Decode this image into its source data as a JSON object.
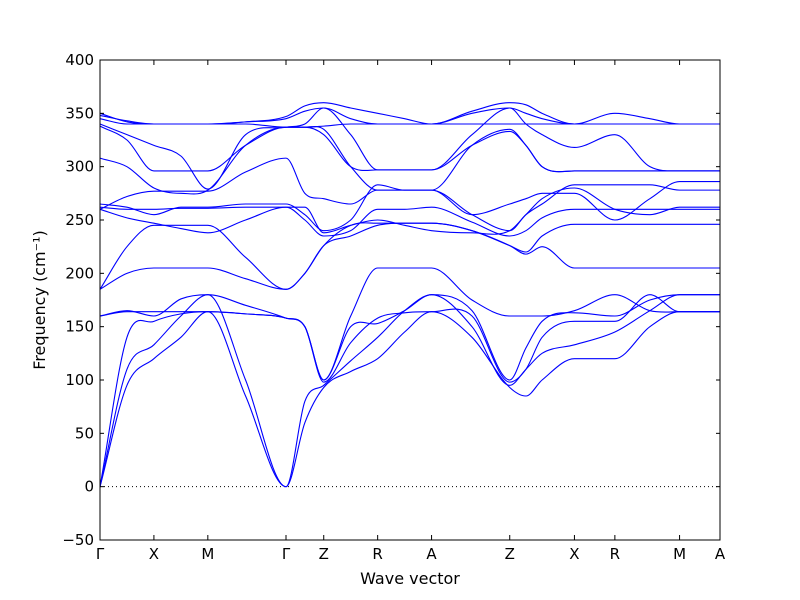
{
  "chart_data": {
    "type": "line",
    "title": "",
    "xlabel": "Wave vector",
    "ylabel": "Frequency (cm⁻¹)",
    "ylim": [
      -50,
      400
    ],
    "yticks": [
      -50,
      0,
      50,
      100,
      150,
      200,
      250,
      300,
      350,
      400
    ],
    "xlim": [
      0,
      11.5
    ],
    "xticks": [
      {
        "label": "Γ",
        "x": 0
      },
      {
        "label": "X",
        "x": 1
      },
      {
        "label": "M",
        "x": 2
      },
      {
        "label": "Γ",
        "x": 3.45
      },
      {
        "label": "Z",
        "x": 4.15
      },
      {
        "label": "R",
        "x": 5.15
      },
      {
        "label": "A",
        "x": 6.15
      },
      {
        "label": "Z",
        "x": 7.6
      },
      {
        "label": "X",
        "x": 8.8
      },
      {
        "label": "R",
        "x": 9.55
      },
      {
        "label": "M",
        "x": 10.75
      },
      {
        "label": "A",
        "x": 11.5
      }
    ],
    "zero_line": {
      "y": 0,
      "style": "dotted"
    },
    "line_color": "#0000ff",
    "series": [
      {
        "x": [
          0,
          0.5,
          1,
          1.5,
          2,
          2.7,
          3.45,
          3.8,
          4.15,
          4.65,
          5.15,
          5.65,
          6.15,
          6.9,
          7.6,
          7.9,
          8.2,
          8.8,
          9.55,
          10.2,
          10.75,
          11.5
        ],
        "y": [
          0,
          95,
          120,
          140,
          164,
          85,
          0,
          60,
          93,
          108,
          120,
          145,
          164,
          140,
          93,
          85,
          100,
          120,
          120,
          150,
          164,
          164
        ]
      },
      {
        "x": [
          0,
          0.5,
          1,
          1.5,
          2,
          2.7,
          3.45,
          3.8,
          4.15,
          4.65,
          5.15,
          5.65,
          6.15,
          6.9,
          7.6,
          7.9,
          8.2,
          8.8,
          9.55,
          10.2,
          10.75,
          11.5
        ],
        "y": [
          0,
          110,
          133,
          160,
          180,
          100,
          0,
          80,
          95,
          118,
          140,
          165,
          180,
          150,
          95,
          110,
          125,
          133,
          145,
          165,
          180,
          180
        ]
      },
      {
        "x": [
          0,
          0.5,
          1,
          1.5,
          2,
          2.7,
          3.45,
          3.8,
          4.15,
          4.65,
          5.15,
          5.65,
          6.15,
          6.9,
          7.6,
          7.9,
          8.2,
          8.8,
          9.55,
          10.2,
          10.75,
          11.5
        ],
        "y": [
          0,
          140,
          155,
          162,
          164,
          162,
          158,
          150,
          98,
          135,
          158,
          163,
          164,
          160,
          98,
          110,
          140,
          155,
          155,
          180,
          164,
          164
        ]
      },
      {
        "x": [
          0,
          0.5,
          1,
          1.5,
          2,
          2.7,
          3.45,
          3.8,
          4.15,
          4.65,
          5.15,
          5.65,
          6.15,
          6.9,
          7.6,
          7.9,
          8.2,
          8.8,
          9.55,
          10.2,
          10.75,
          11.5
        ],
        "y": [
          160,
          164,
          164,
          164,
          164,
          162,
          158,
          150,
          100,
          150,
          153,
          165,
          180,
          165,
          100,
          130,
          155,
          163,
          160,
          175,
          180,
          180
        ]
      },
      {
        "x": [
          0,
          0.5,
          1,
          1.5,
          2,
          2.7,
          3.45,
          3.8,
          4.15,
          4.65,
          5.15,
          5.65,
          6.15,
          6.9,
          7.6,
          7.9,
          8.2,
          8.8,
          9.55,
          10.2,
          10.75,
          11.5
        ],
        "y": [
          160,
          165,
          160,
          176,
          180,
          170,
          158,
          150,
          100,
          160,
          205,
          205,
          205,
          175,
          160,
          160,
          160,
          165,
          180,
          165,
          164,
          164
        ]
      },
      {
        "x": [
          0,
          0.5,
          1,
          1.5,
          2,
          2.7,
          3.45,
          3.8,
          4.15,
          4.65,
          5.15,
          5.65,
          6.15,
          6.9,
          7.6,
          7.9,
          8.2,
          8.8,
          9.55,
          10.2,
          10.75,
          11.5
        ],
        "y": [
          185,
          200,
          205,
          205,
          205,
          195,
          185,
          200,
          226,
          235,
          245,
          247,
          247,
          240,
          226,
          218,
          225,
          205,
          205,
          205,
          205,
          205
        ]
      },
      {
        "x": [
          0,
          0.5,
          1,
          1.5,
          2,
          2.7,
          3.45,
          3.8,
          4.15,
          4.65,
          5.15,
          5.65,
          6.15,
          6.9,
          7.6,
          7.9,
          8.2,
          8.8,
          9.55,
          10.2,
          10.75,
          11.5
        ],
        "y": [
          185,
          225,
          245,
          245,
          245,
          215,
          185,
          200,
          226,
          245,
          247,
          247,
          247,
          240,
          226,
          220,
          235,
          246,
          246,
          246,
          246,
          246
        ]
      },
      {
        "x": [
          0,
          0.5,
          1,
          1.5,
          2,
          2.7,
          3.45,
          3.8,
          4.15,
          4.65,
          5.15,
          5.65,
          6.15,
          6.9,
          7.6,
          7.9,
          8.2,
          8.8,
          9.55,
          10.2,
          10.75,
          11.5
        ],
        "y": [
          260,
          252,
          247,
          242,
          238,
          250,
          262,
          250,
          235,
          240,
          260,
          260,
          262,
          248,
          235,
          240,
          252,
          260,
          260,
          260,
          260,
          260
        ]
      },
      {
        "x": [
          0,
          0.5,
          1,
          1.5,
          2,
          2.7,
          3.45,
          3.8,
          4.15,
          4.65,
          5.15,
          5.65,
          6.15,
          6.9,
          7.6,
          7.9,
          8.2,
          8.8,
          9.55,
          10.2,
          10.75,
          11.5
        ],
        "y": [
          262,
          260,
          260,
          261,
          261,
          262,
          262,
          262,
          238,
          245,
          250,
          245,
          240,
          238,
          240,
          255,
          270,
          280,
          260,
          255,
          262,
          262
        ]
      },
      {
        "x": [
          0,
          0.5,
          1,
          1.5,
          2,
          2.7,
          3.45,
          3.8,
          4.15,
          4.65,
          5.15,
          5.65,
          6.15,
          6.9,
          7.6,
          7.9,
          8.2,
          8.8,
          9.55,
          10.2,
          10.75,
          11.5
        ],
        "y": [
          265,
          262,
          255,
          262,
          262,
          265,
          265,
          255,
          240,
          250,
          283,
          278,
          278,
          255,
          240,
          255,
          265,
          283,
          283,
          283,
          278,
          278
        ]
      },
      {
        "x": [
          0,
          0.5,
          1,
          1.5,
          2,
          2.7,
          3.45,
          3.8,
          4.15,
          4.65,
          5.15,
          5.65,
          6.15,
          6.9,
          7.6,
          7.9,
          8.2,
          8.8,
          9.55,
          10.2,
          10.75,
          11.5
        ],
        "y": [
          260,
          272,
          277,
          277,
          277,
          295,
          308,
          275,
          270,
          265,
          278,
          278,
          278,
          255,
          265,
          270,
          275,
          275,
          250,
          270,
          286,
          286
        ]
      },
      {
        "x": [
          0,
          0.5,
          1,
          1.5,
          2,
          2.7,
          3.45,
          3.8,
          4.15,
          4.65,
          5.15,
          5.65,
          6.15,
          6.9,
          7.6,
          7.9,
          8.2,
          8.8,
          9.55,
          10.2,
          10.75,
          11.5
        ],
        "y": [
          308,
          300,
          280,
          275,
          278,
          320,
          337,
          337,
          330,
          300,
          297,
          297,
          297,
          320,
          333,
          320,
          300,
          296,
          296,
          296,
          296,
          296
        ]
      },
      {
        "x": [
          0,
          0.5,
          1,
          1.5,
          2,
          2.7,
          3.45,
          3.8,
          4.15,
          4.65,
          5.15,
          5.65,
          6.15,
          6.9,
          7.6,
          7.9,
          8.2,
          8.8,
          9.55,
          10.2,
          10.75,
          11.5
        ],
        "y": [
          338,
          325,
          296,
          296,
          296,
          320,
          337,
          337,
          335,
          300,
          278,
          278,
          278,
          320,
          335,
          320,
          300,
          296,
          296,
          296,
          296,
          296
        ]
      },
      {
        "x": [
          0,
          0.5,
          1,
          1.5,
          2,
          2.7,
          3.45,
          3.8,
          4.15,
          4.65,
          5.15,
          5.65,
          6.15,
          6.9,
          7.6,
          7.9,
          8.2,
          8.8,
          9.55,
          10.2,
          10.75,
          11.5
        ],
        "y": [
          340,
          330,
          320,
          310,
          279,
          330,
          337,
          340,
          355,
          330,
          297,
          297,
          297,
          330,
          355,
          340,
          330,
          318,
          330,
          300,
          296,
          296
        ]
      },
      {
        "x": [
          0,
          0.5,
          1,
          1.5,
          2,
          2.7,
          3.45,
          3.8,
          4.15,
          4.65,
          5.15,
          5.65,
          6.15,
          6.9,
          7.6,
          7.9,
          8.2,
          8.8,
          9.55,
          10.2,
          10.75,
          11.5
        ],
        "y": [
          345,
          340,
          340,
          340,
          340,
          342,
          345,
          352,
          355,
          345,
          340,
          340,
          340,
          350,
          355,
          350,
          345,
          340,
          350,
          345,
          340,
          340
        ]
      },
      {
        "x": [
          0,
          0.5,
          1,
          1.5,
          2,
          2.7,
          3.45,
          3.8,
          4.15,
          4.65,
          5.15,
          5.65,
          6.15,
          6.9,
          7.6,
          7.9,
          8.2,
          8.8,
          9.55,
          10.2,
          10.75,
          11.5
        ],
        "y": [
          348,
          343,
          340,
          340,
          340,
          342,
          347,
          357,
          360,
          355,
          350,
          345,
          340,
          352,
          360,
          358,
          350,
          340,
          340,
          340,
          340,
          340
        ]
      },
      {
        "x": [
          0,
          0.5,
          1,
          1.5,
          2,
          2.7,
          3.45,
          3.8,
          4.15,
          4.65,
          5.15,
          5.65,
          6.15,
          6.9,
          7.6,
          7.9,
          8.2,
          8.8,
          9.55,
          10.2,
          10.75,
          11.5
        ],
        "y": [
          350,
          342,
          340,
          340,
          340,
          340,
          337,
          337,
          338,
          340,
          340,
          340,
          340,
          340,
          340,
          340,
          340,
          340,
          340,
          340,
          340,
          340
        ]
      }
    ]
  }
}
